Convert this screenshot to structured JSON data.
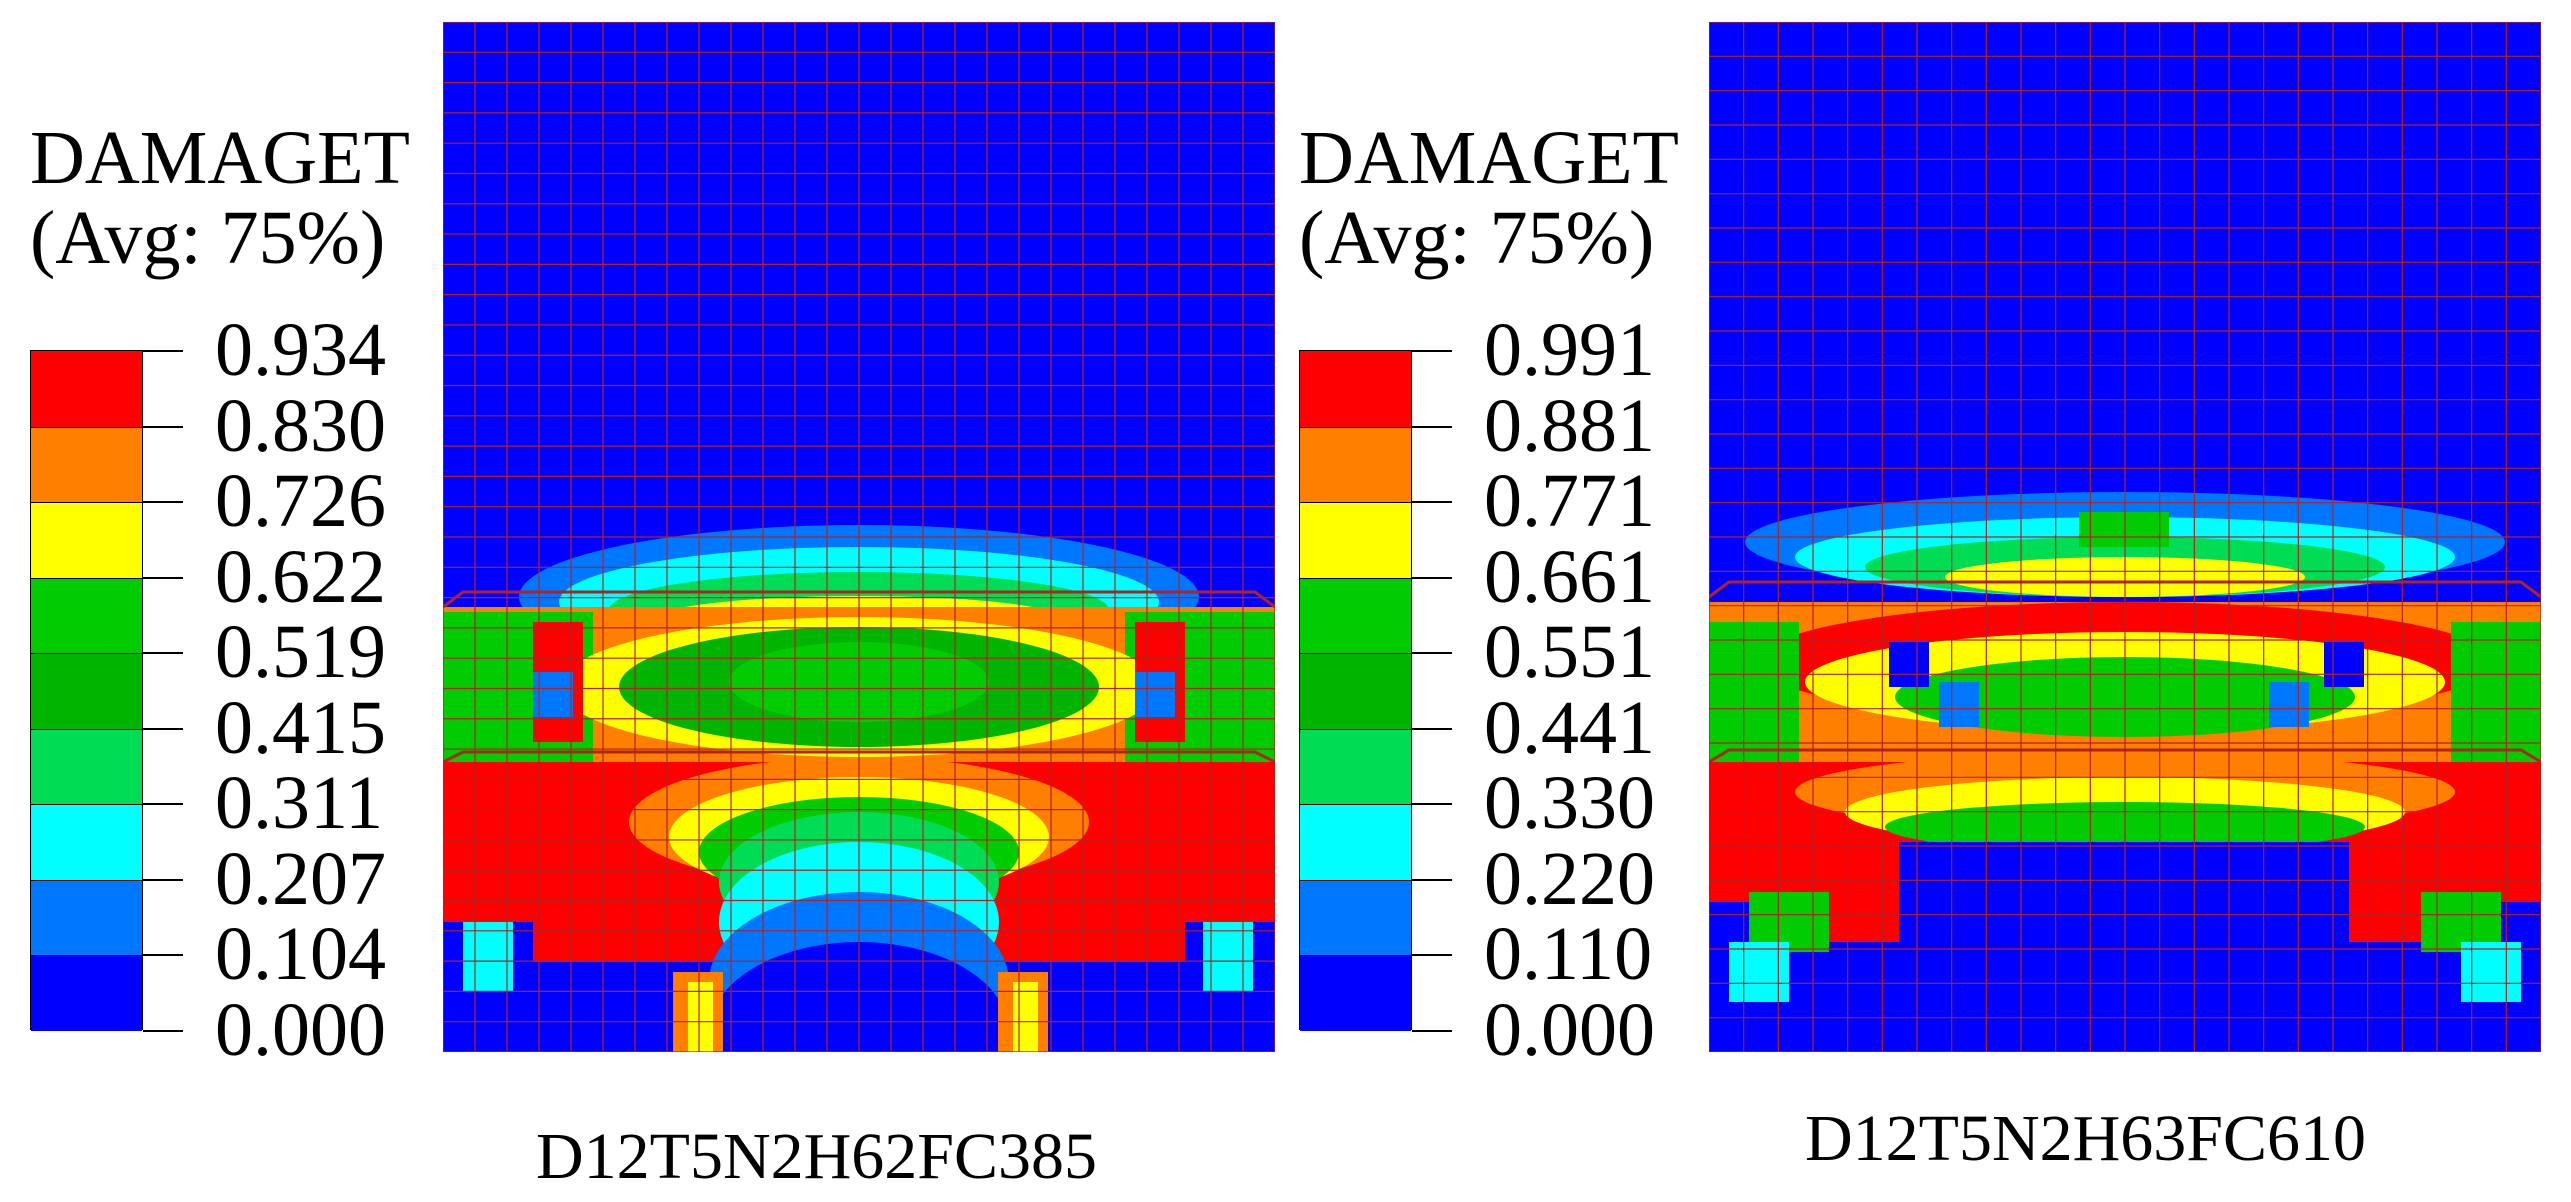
{
  "figure": {
    "left": {
      "legend_title": "DAMAGET",
      "legend_subtitle": "(Avg: 75%)",
      "ticks": [
        "0.934",
        "0.830",
        "0.726",
        "0.622",
        "0.519",
        "0.415",
        "0.311",
        "0.207",
        "0.104",
        "0.000"
      ],
      "caption": "D12T5N2H62FC385"
    },
    "right": {
      "legend_title": "DAMAGET",
      "legend_subtitle": "(Avg: 75%)",
      "ticks": [
        "0.991",
        "0.881",
        "0.771",
        "0.661",
        "0.551",
        "0.441",
        "0.330",
        "0.220",
        "0.110",
        "0.000"
      ],
      "caption": "D12T5N2H63FC610"
    },
    "colorbar_colors": [
      "#ff0000",
      "#ff7f00",
      "#ffff00",
      "#00cc00",
      "#00b400",
      "#00dd55",
      "#00ffff",
      "#0077ff",
      "#0000ff"
    ],
    "contour": {
      "background": "#0000ff",
      "mesh_line": "#b22222"
    }
  }
}
